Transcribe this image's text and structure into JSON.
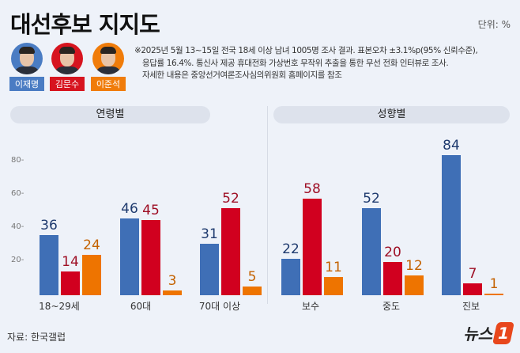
{
  "header": {
    "title": "대선후보 지지도",
    "unit": "단위: %"
  },
  "candidates": [
    {
      "name": "이재명",
      "color": "#3f6fb6",
      "bg": "#4a7cc3"
    },
    {
      "name": "김문수",
      "color": "#d1001f",
      "bg": "#d7141f"
    },
    {
      "name": "이준석",
      "color": "#ee7400",
      "bg": "#f07c0a"
    }
  ],
  "note": {
    "lines": [
      "※2025년 5월 13~15일 전국 18세 이상 남녀 1005명 조사 결과. 표본오차 ±3.1%p(95% 신뢰수준),",
      "응답률 16.4%. 통신사 제공 휴대전화 가상번호 무작위 추출을 통한 무선 전화 인터뷰로 조사.",
      "자세한 내용은 중앙선거여론조사심의위원회 홈페이지를 참조"
    ]
  },
  "sections": {
    "left": "연령별",
    "right": "성향별"
  },
  "source": "자료: 한국갤럽",
  "logo": {
    "text": "뉴스",
    "mark": "1"
  },
  "chart_data": {
    "type": "bar",
    "title": "대선후보 지지도",
    "ylabel": "단위: %",
    "ylim": [
      0,
      85
    ],
    "yticks": [
      20,
      40,
      60,
      80
    ],
    "grid": false,
    "legend": [
      "이재명",
      "김문수",
      "이준석"
    ],
    "groups": [
      {
        "label": "연령별",
        "categories": [
          "18~29세",
          "60대",
          "70대 이상"
        ]
      },
      {
        "label": "성향별",
        "categories": [
          "보수",
          "중도",
          "진보"
        ]
      }
    ],
    "categories": [
      "18~29세",
      "60대",
      "70대 이상",
      "보수",
      "중도",
      "진보"
    ],
    "series": [
      {
        "name": "이재명",
        "color": "#3f6fb6",
        "values": [
          36,
          46,
          31,
          22,
          52,
          84
        ]
      },
      {
        "name": "김문수",
        "color": "#d1001f",
        "values": [
          14,
          45,
          52,
          58,
          20,
          7
        ]
      },
      {
        "name": "이준석",
        "color": "#ee7400",
        "values": [
          24,
          3,
          5,
          11,
          12,
          1
        ]
      }
    ]
  }
}
